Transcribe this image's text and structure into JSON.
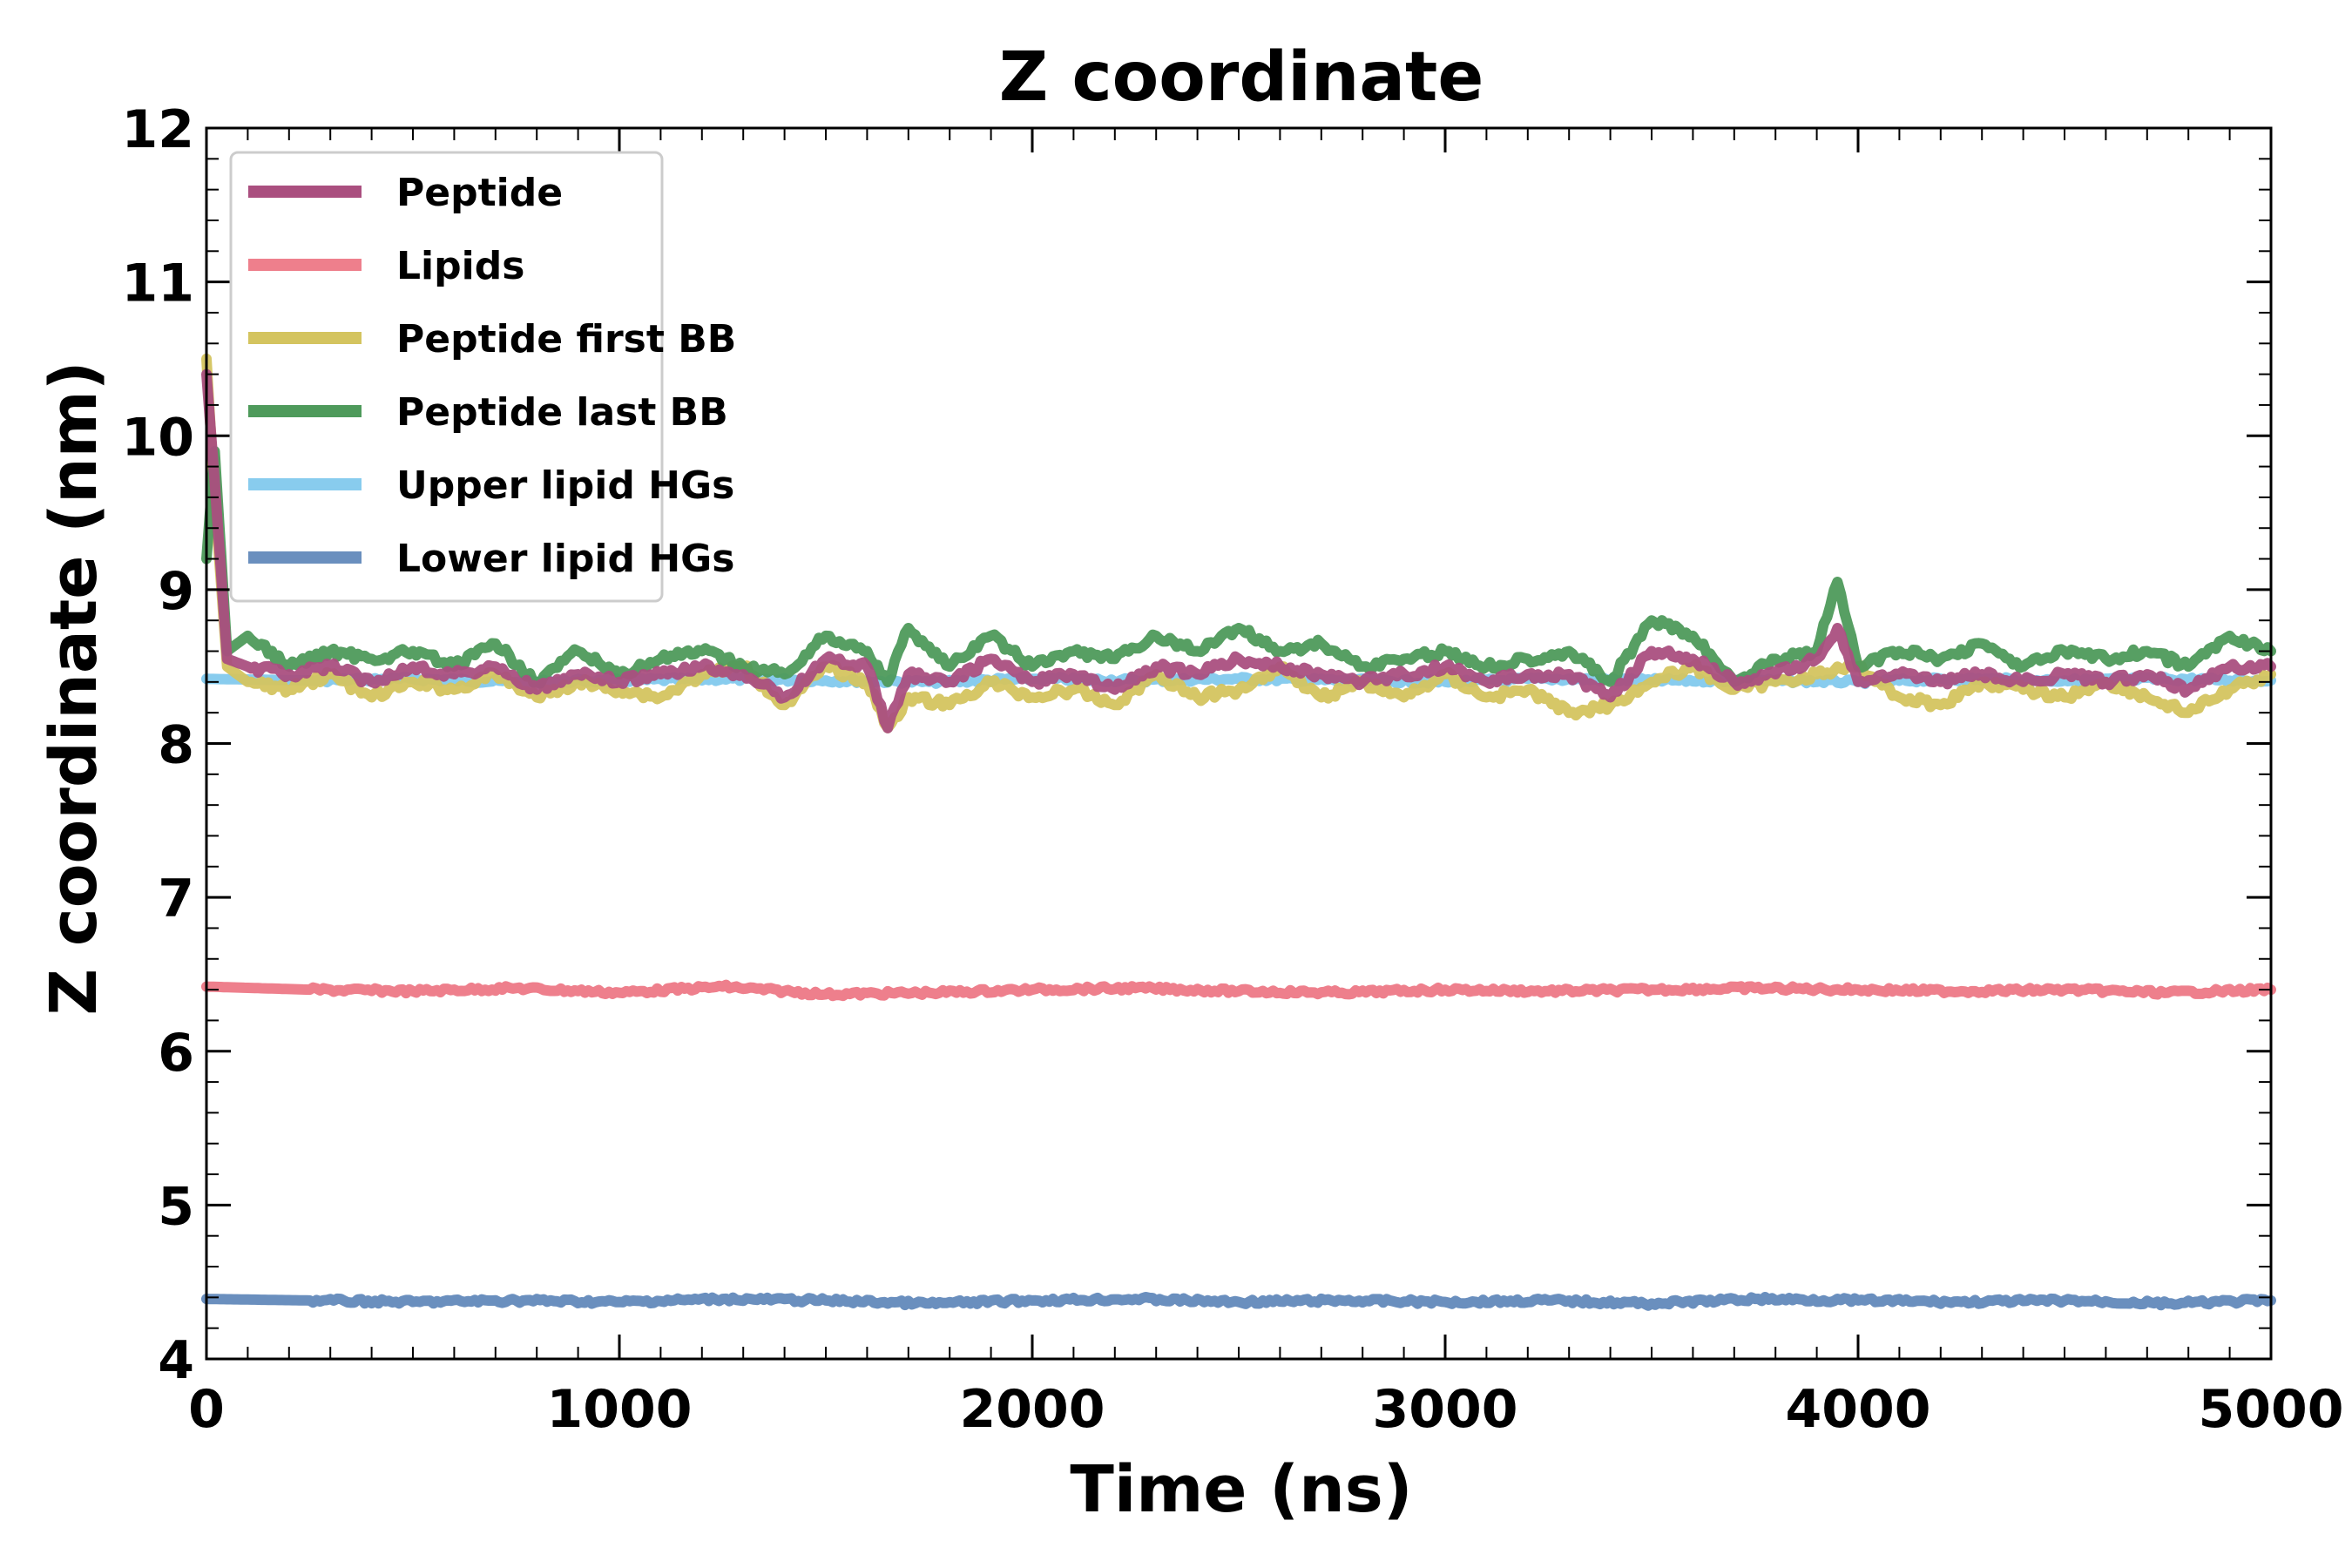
{
  "chart_data": {
    "type": "line",
    "title": "Z coordinate",
    "xlabel": "Time (ns)",
    "ylabel": "Z coordinate (nm)",
    "xlim": [
      0,
      5000
    ],
    "ylim": [
      4,
      12
    ],
    "x_ticks": [
      "0",
      "1000",
      "2000",
      "3000",
      "4000",
      "5000"
    ],
    "y_ticks": [
      "4",
      "5",
      "6",
      "7",
      "8",
      "9",
      "10",
      "11",
      "12"
    ],
    "grid": false,
    "legend_position": "top-left",
    "series": [
      {
        "name": "Upper lipid HGs",
        "color": "#88CCEE",
        "x": [
          0,
          250,
          500,
          750,
          1000,
          1250,
          1500,
          1750,
          2000,
          2250,
          2500,
          2750,
          3000,
          3250,
          3500,
          3750,
          4000,
          4250,
          4500,
          4750,
          5000
        ],
        "y": [
          8.42,
          8.41,
          8.42,
          8.4,
          8.41,
          8.42,
          8.41,
          8.4,
          8.42,
          8.41,
          8.42,
          8.41,
          8.4,
          8.42,
          8.41,
          8.41,
          8.4,
          8.42,
          8.41,
          8.42,
          8.41
        ]
      },
      {
        "name": "Lipids",
        "color": "#EE7F8C",
        "x": [
          0,
          250,
          500,
          750,
          1000,
          1250,
          1500,
          1750,
          2000,
          2250,
          2500,
          2750,
          3000,
          3250,
          3500,
          3750,
          4000,
          4250,
          4500,
          4750,
          5000
        ],
        "y": [
          6.42,
          6.4,
          6.39,
          6.41,
          6.38,
          6.42,
          6.37,
          6.38,
          6.4,
          6.41,
          6.39,
          6.38,
          6.4,
          6.39,
          6.4,
          6.41,
          6.4,
          6.39,
          6.4,
          6.38,
          6.4
        ]
      },
      {
        "name": "Lower lipid HGs",
        "color": "#6A8FBE",
        "x": [
          0,
          250,
          500,
          750,
          1000,
          1250,
          1500,
          1750,
          2000,
          2250,
          2500,
          2750,
          3000,
          3250,
          3500,
          3750,
          4000,
          4250,
          4500,
          4750,
          5000
        ],
        "y": [
          4.39,
          4.38,
          4.37,
          4.38,
          4.37,
          4.39,
          4.38,
          4.36,
          4.38,
          4.39,
          4.37,
          4.38,
          4.37,
          4.38,
          4.36,
          4.39,
          4.38,
          4.37,
          4.38,
          4.36,
          4.38
        ]
      },
      {
        "name": "Peptide first BB",
        "color": "#D4C45F",
        "x": [
          0,
          20,
          50,
          100,
          200,
          300,
          400,
          500,
          600,
          700,
          800,
          900,
          1000,
          1100,
          1200,
          1300,
          1400,
          1500,
          1600,
          1650,
          1700,
          1800,
          1900,
          2000,
          2100,
          2200,
          2300,
          2400,
          2500,
          2600,
          2700,
          2800,
          2900,
          3000,
          3100,
          3200,
          3300,
          3400,
          3500,
          3600,
          3700,
          3800,
          3900,
          4000,
          4100,
          4200,
          4300,
          4400,
          4500,
          4600,
          4700,
          4800,
          4900,
          5000
        ],
        "y": [
          10.5,
          9.6,
          8.5,
          8.4,
          8.35,
          8.45,
          8.3,
          8.4,
          8.35,
          8.45,
          8.3,
          8.4,
          8.35,
          8.3,
          8.45,
          8.5,
          8.25,
          8.5,
          8.4,
          8.1,
          8.3,
          8.25,
          8.4,
          8.3,
          8.35,
          8.25,
          8.45,
          8.3,
          8.35,
          8.5,
          8.3,
          8.4,
          8.3,
          8.45,
          8.3,
          8.35,
          8.2,
          8.25,
          8.4,
          8.5,
          8.35,
          8.4,
          8.45,
          8.5,
          8.3,
          8.25,
          8.4,
          8.35,
          8.3,
          8.4,
          8.3,
          8.2,
          8.35,
          8.45
        ]
      },
      {
        "name": "Peptide last BB",
        "color": "#4E9A5B",
        "x": [
          0,
          20,
          50,
          100,
          200,
          300,
          400,
          500,
          600,
          700,
          800,
          900,
          1000,
          1100,
          1200,
          1300,
          1400,
          1500,
          1600,
          1650,
          1700,
          1800,
          1900,
          2000,
          2100,
          2200,
          2300,
          2400,
          2500,
          2600,
          2700,
          2800,
          2900,
          3000,
          3100,
          3200,
          3300,
          3400,
          3500,
          3600,
          3700,
          3800,
          3900,
          3950,
          4000,
          4100,
          4200,
          4300,
          4400,
          4500,
          4600,
          4700,
          4800,
          4900,
          5000
        ],
        "y": [
          9.2,
          9.9,
          8.6,
          8.7,
          8.5,
          8.6,
          8.55,
          8.6,
          8.5,
          8.65,
          8.4,
          8.6,
          8.45,
          8.55,
          8.6,
          8.5,
          8.45,
          8.7,
          8.6,
          8.4,
          8.75,
          8.5,
          8.7,
          8.5,
          8.6,
          8.55,
          8.7,
          8.6,
          8.75,
          8.6,
          8.65,
          8.5,
          8.55,
          8.6,
          8.5,
          8.55,
          8.6,
          8.4,
          8.8,
          8.7,
          8.4,
          8.55,
          8.6,
          9.05,
          8.5,
          8.6,
          8.55,
          8.65,
          8.5,
          8.6,
          8.55,
          8.6,
          8.5,
          8.7,
          8.6
        ]
      },
      {
        "name": "Peptide",
        "color": "#AA4F7F",
        "x": [
          0,
          20,
          50,
          100,
          200,
          300,
          400,
          500,
          600,
          700,
          800,
          900,
          1000,
          1100,
          1200,
          1300,
          1400,
          1500,
          1600,
          1650,
          1700,
          1800,
          1900,
          2000,
          2100,
          2200,
          2300,
          2400,
          2500,
          2600,
          2700,
          2800,
          2900,
          3000,
          3100,
          3200,
          3300,
          3400,
          3500,
          3600,
          3700,
          3800,
          3900,
          3950,
          4000,
          4100,
          4200,
          4300,
          4400,
          4500,
          4600,
          4700,
          4800,
          4900,
          5000
        ],
        "y": [
          10.4,
          9.7,
          8.55,
          8.5,
          8.45,
          8.5,
          8.4,
          8.5,
          8.45,
          8.5,
          8.35,
          8.45,
          8.4,
          8.45,
          8.5,
          8.45,
          8.3,
          8.55,
          8.5,
          8.1,
          8.45,
          8.4,
          8.55,
          8.4,
          8.45,
          8.35,
          8.5,
          8.45,
          8.55,
          8.5,
          8.45,
          8.4,
          8.45,
          8.5,
          8.4,
          8.45,
          8.45,
          8.3,
          8.6,
          8.55,
          8.4,
          8.45,
          8.55,
          8.75,
          8.4,
          8.45,
          8.4,
          8.45,
          8.4,
          8.45,
          8.4,
          8.45,
          8.35,
          8.5,
          8.5
        ]
      }
    ],
    "legend_order": [
      "Peptide",
      "Lipids",
      "Peptide first BB",
      "Peptide last BB",
      "Upper lipid HGs",
      "Lower lipid HGs"
    ]
  }
}
